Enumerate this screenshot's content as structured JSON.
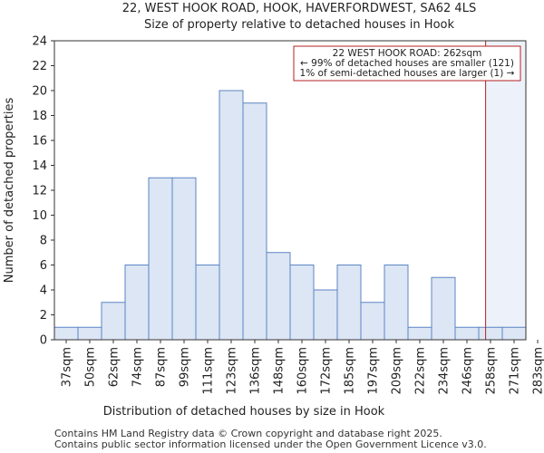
{
  "chart_data": {
    "type": "bar",
    "title": "22, WEST HOOK ROAD, HOOK, HAVERFORDWEST, SA62 4LS",
    "subtitle": "Size of property relative to detached houses in Hook",
    "xlabel": "Distribution of detached houses by size in Hook",
    "ylabel": "Number of detached properties",
    "ylim": [
      0,
      24
    ],
    "yticks": [
      "0",
      "2",
      "4",
      "6",
      "8",
      "10",
      "12",
      "14",
      "16",
      "18",
      "20",
      "22",
      "24"
    ],
    "xticks": [
      "37sqm",
      "50sqm",
      "62sqm",
      "74sqm",
      "87sqm",
      "99sqm",
      "111sqm",
      "123sqm",
      "136sqm",
      "148sqm",
      "160sqm",
      "172sqm",
      "185sqm",
      "197sqm",
      "209sqm",
      "222sqm",
      "234sqm",
      "246sqm",
      "258sqm",
      "271sqm",
      "283sqm"
    ],
    "values": [
      1,
      1,
      3,
      6,
      13,
      13,
      6,
      20,
      19,
      7,
      6,
      4,
      6,
      3,
      6,
      1,
      5,
      1,
      1,
      1
    ],
    "marker_value": 262,
    "marker_color": "#b22222",
    "bar_fill": "#dce6f4",
    "bar_stroke": "#5b84c4",
    "highlight_fill": "#edf2fa",
    "grid": false,
    "annotation": {
      "line1": "22 WEST HOOK ROAD: 262sqm",
      "line2": "← 99% of detached houses are smaller (121)",
      "line3": "1% of semi-detached houses are larger (1) →"
    }
  },
  "footer": {
    "line1": "Contains HM Land Registry data © Crown copyright and database right 2025.",
    "line2": "Contains public sector information licensed under the Open Government Licence v3.0."
  }
}
